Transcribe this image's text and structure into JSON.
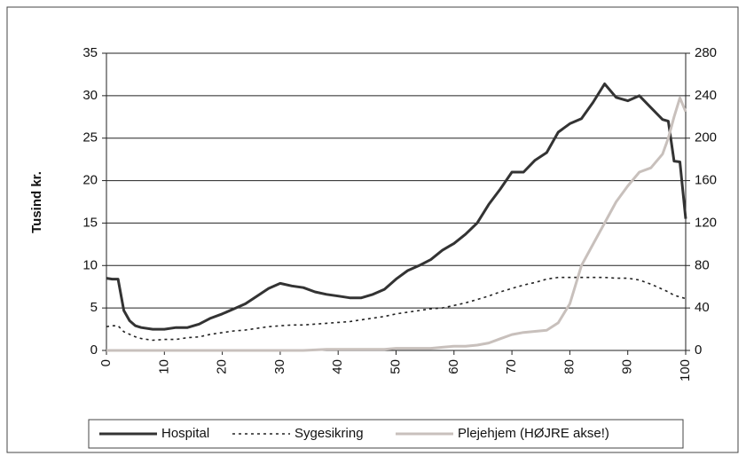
{
  "chart_data": {
    "type": "line",
    "ylabel": "Tusind kr.",
    "x": [
      0,
      1,
      2,
      3,
      4,
      5,
      6,
      8,
      10,
      12,
      14,
      16,
      18,
      20,
      22,
      24,
      26,
      28,
      30,
      32,
      34,
      36,
      38,
      40,
      42,
      44,
      46,
      48,
      50,
      52,
      54,
      56,
      58,
      60,
      62,
      64,
      66,
      68,
      70,
      72,
      74,
      76,
      78,
      80,
      82,
      84,
      86,
      88,
      90,
      92,
      94,
      96,
      97,
      98,
      99,
      100
    ],
    "xlim": [
      0,
      100
    ],
    "xticks": [
      0,
      10,
      20,
      30,
      40,
      50,
      60,
      70,
      80,
      90,
      100
    ],
    "ylim": [
      0,
      35
    ],
    "yticks": [
      0,
      5,
      10,
      15,
      20,
      25,
      30,
      35
    ],
    "y2lim": [
      0,
      280
    ],
    "y2ticks": [
      0,
      40,
      80,
      120,
      160,
      200,
      240,
      280
    ],
    "grid": true,
    "legend": "bottom",
    "series": [
      {
        "name": "Hospital",
        "color": "#333333",
        "style": "solid",
        "values": [
          8.5,
          8.4,
          8.4,
          4.7,
          3.5,
          2.9,
          2.7,
          2.5,
          2.5,
          2.7,
          2.7,
          3.1,
          3.8,
          4.3,
          4.9,
          5.5,
          6.4,
          7.3,
          7.9,
          7.6,
          7.4,
          6.9,
          6.6,
          6.4,
          6.2,
          6.2,
          6.6,
          7.2,
          8.4,
          9.4,
          10.0,
          10.7,
          11.8,
          12.6,
          13.7,
          15.0,
          17.2,
          19.0,
          21.0,
          21.0,
          22.4,
          23.3,
          25.7,
          26.7,
          27.3,
          29.2,
          31.4,
          29.8,
          29.4,
          30.0,
          28.6,
          27.2,
          27.0,
          22.3,
          22.2,
          15.5
        ]
      },
      {
        "name": "Sygesikring",
        "color": "#222222",
        "style": "dashed",
        "values": [
          2.8,
          2.9,
          2.9,
          2.2,
          1.9,
          1.6,
          1.4,
          1.2,
          1.3,
          1.3,
          1.5,
          1.6,
          1.9,
          2.1,
          2.3,
          2.4,
          2.6,
          2.8,
          2.9,
          3.0,
          3.0,
          3.1,
          3.2,
          3.3,
          3.4,
          3.6,
          3.8,
          4.0,
          4.3,
          4.5,
          4.7,
          4.9,
          5.0,
          5.3,
          5.6,
          6.0,
          6.4,
          6.9,
          7.3,
          7.7,
          8.0,
          8.4,
          8.6,
          8.6,
          8.6,
          8.6,
          8.6,
          8.5,
          8.5,
          8.3,
          7.8,
          7.2,
          6.9,
          6.5,
          6.3,
          6.1
        ]
      },
      {
        "name": "Plejehjem (HØJRE akse!)",
        "color": "#c8c0bc",
        "style": "solid",
        "axis": "y2",
        "values": [
          0,
          0,
          0,
          0,
          0,
          0,
          0,
          0,
          0,
          0,
          0,
          0,
          0,
          0,
          0,
          0,
          0,
          0,
          0,
          0,
          0,
          0.5,
          1,
          1,
          1,
          1,
          1,
          1,
          2,
          2,
          2,
          2,
          3,
          4,
          4,
          5,
          7,
          11,
          15,
          17,
          18,
          19,
          26,
          44,
          80,
          100,
          120,
          140,
          155,
          168,
          172,
          185,
          200,
          220,
          238,
          225
        ]
      }
    ]
  }
}
